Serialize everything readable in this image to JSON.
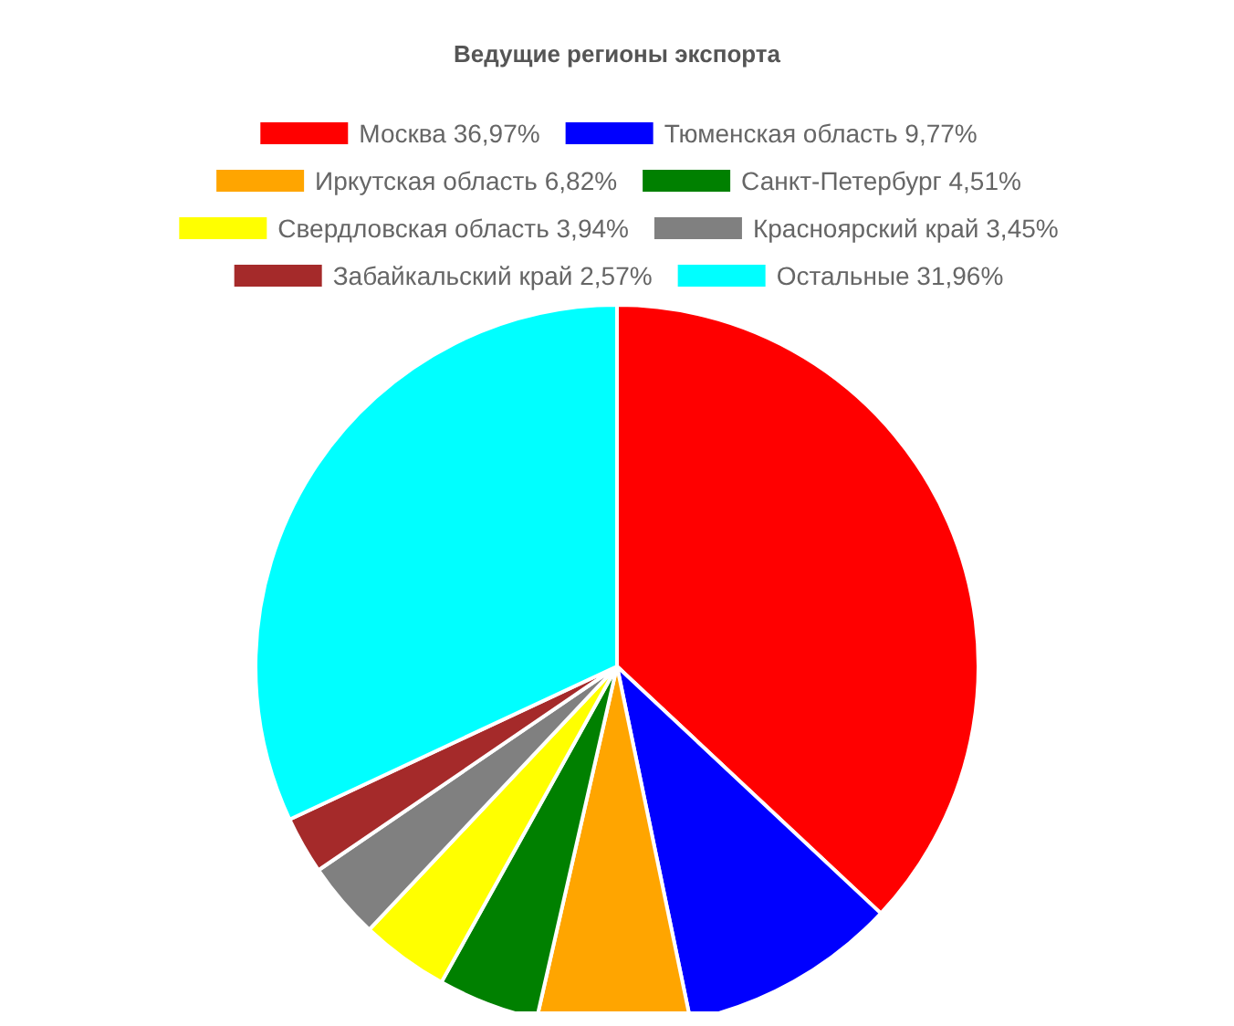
{
  "chart_data": {
    "type": "pie",
    "title": "Ведущие регионы экспорта",
    "categories": [
      "Москва",
      "Тюменская область",
      "Иркутская область",
      "Санкт-Петербург",
      "Свердловская область",
      "Красноярский край",
      "Забайкальский край",
      "Остальные"
    ],
    "values": [
      36.97,
      9.77,
      6.82,
      4.51,
      3.94,
      3.45,
      2.57,
      31.96
    ],
    "value_labels": [
      "36,97%",
      "9,77%",
      "6,82%",
      "4,51%",
      "3,94%",
      "3,45%",
      "2,57%",
      "31,96%"
    ],
    "colors": [
      "#ff0000",
      "#0000ff",
      "#ffa500",
      "#008000",
      "#ffff00",
      "#808080",
      "#a52a2a",
      "#00ffff"
    ],
    "legend": "top"
  }
}
